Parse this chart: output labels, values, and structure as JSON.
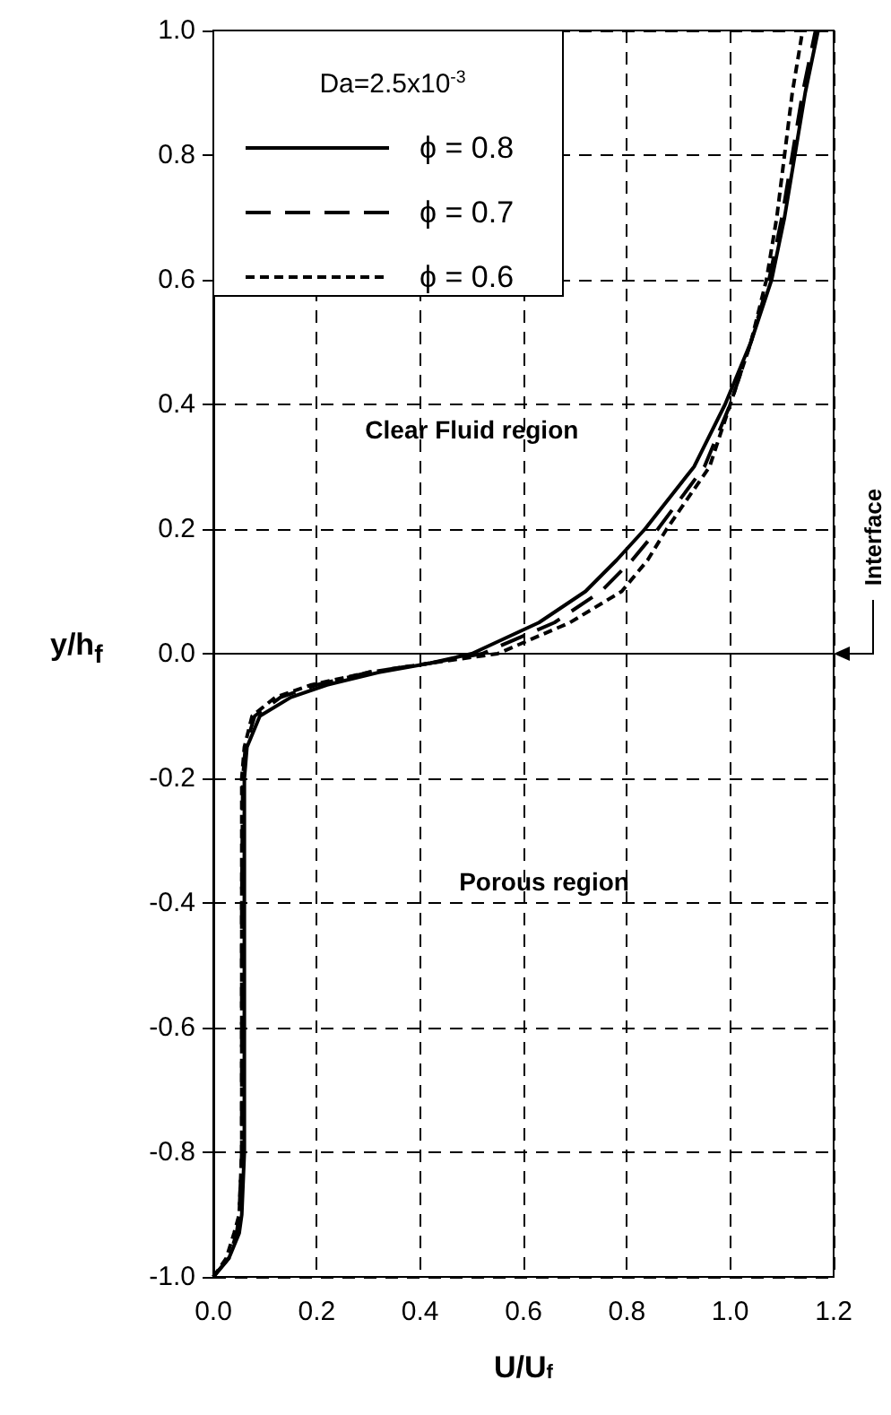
{
  "chart_data": {
    "type": "line",
    "xlabel": "U/U$_{f}$",
    "ylabel": "y/h$_{f}$",
    "legend_title": "Da=2.5x10$^{-3}$",
    "xlim": [
      0,
      1.2
    ],
    "xticks": [
      {
        "value": 0,
        "label": "0.0"
      },
      0.2,
      0.4,
      0.6,
      0.8,
      {
        "value": 1,
        "label": "1.0"
      },
      1.2
    ],
    "ylim": [
      -1,
      1
    ],
    "yticks": [
      {
        "value": -1,
        "label": "-1.0"
      },
      -0.8,
      -0.6,
      -0.4,
      -0.2,
      {
        "value": 0,
        "label": "0.0"
      },
      0.2,
      0.4,
      0.6,
      0.8,
      {
        "value": 1,
        "label": "1.0"
      }
    ],
    "grid": true,
    "legend": "top left",
    "marker": "none",
    "series": [
      {
        "name": "ϕ = 0.8",
        "color": "#000000",
        "line_style": "solid",
        "x": [
          0,
          0.03,
          0.05,
          0.055,
          0.06,
          0.06,
          0.06,
          0.06,
          0.065,
          0.09,
          0.15,
          0.22,
          0.32,
          0.42,
          0.5,
          0.63,
          0.72,
          0.78,
          0.835,
          0.93,
          0.99,
          1.04,
          1.08,
          1.105,
          1.125,
          1.145,
          1.17
        ],
        "values": [
          -1,
          -0.97,
          -0.93,
          -0.9,
          -0.8,
          -0.6,
          -0.4,
          -0.2,
          -0.15,
          -0.1,
          -0.07,
          -0.05,
          -0.03,
          -0.015,
          0,
          0.05,
          0.1,
          0.15,
          0.2,
          0.3,
          0.4,
          0.5,
          0.6,
          0.7,
          0.8,
          0.9,
          1
        ]
      },
      {
        "name": "ϕ = 0.7",
        "color": "#000000",
        "line_style": "dashed",
        "x": [
          0,
          0.03,
          0.045,
          0.05,
          0.055,
          0.055,
          0.055,
          0.057,
          0.062,
          0.08,
          0.13,
          0.2,
          0.3,
          0.42,
          0.52,
          0.66,
          0.75,
          0.81,
          0.86,
          0.95,
          1,
          1.04,
          1.075,
          1.1,
          1.12,
          1.14,
          1.165
        ],
        "values": [
          -1,
          -0.97,
          -0.93,
          -0.9,
          -0.8,
          -0.6,
          -0.4,
          -0.2,
          -0.15,
          -0.1,
          -0.07,
          -0.05,
          -0.03,
          -0.015,
          0,
          0.05,
          0.1,
          0.15,
          0.2,
          0.3,
          0.4,
          0.5,
          0.6,
          0.7,
          0.8,
          0.9,
          1
        ]
      },
      {
        "name": "ϕ = 0.6",
        "color": "#000000",
        "line_style": "dotted",
        "x": [
          0,
          0.025,
          0.04,
          0.05,
          0.055,
          0.055,
          0.055,
          0.055,
          0.06,
          0.075,
          0.12,
          0.19,
          0.3,
          0.42,
          0.55,
          0.69,
          0.79,
          0.84,
          0.877,
          0.96,
          1,
          1.04,
          1.07,
          1.09,
          1.105,
          1.12,
          1.14
        ],
        "values": [
          -1,
          -0.97,
          -0.93,
          -0.9,
          -0.8,
          -0.6,
          -0.4,
          -0.2,
          -0.15,
          -0.1,
          -0.07,
          -0.05,
          -0.03,
          -0.015,
          0,
          0.05,
          0.1,
          0.15,
          0.2,
          0.3,
          0.4,
          0.5,
          0.6,
          0.7,
          0.8,
          0.9,
          1
        ]
      }
    ],
    "annotations": [
      "Clear Fluid region",
      "Porous region",
      "Interface"
    ]
  }
}
